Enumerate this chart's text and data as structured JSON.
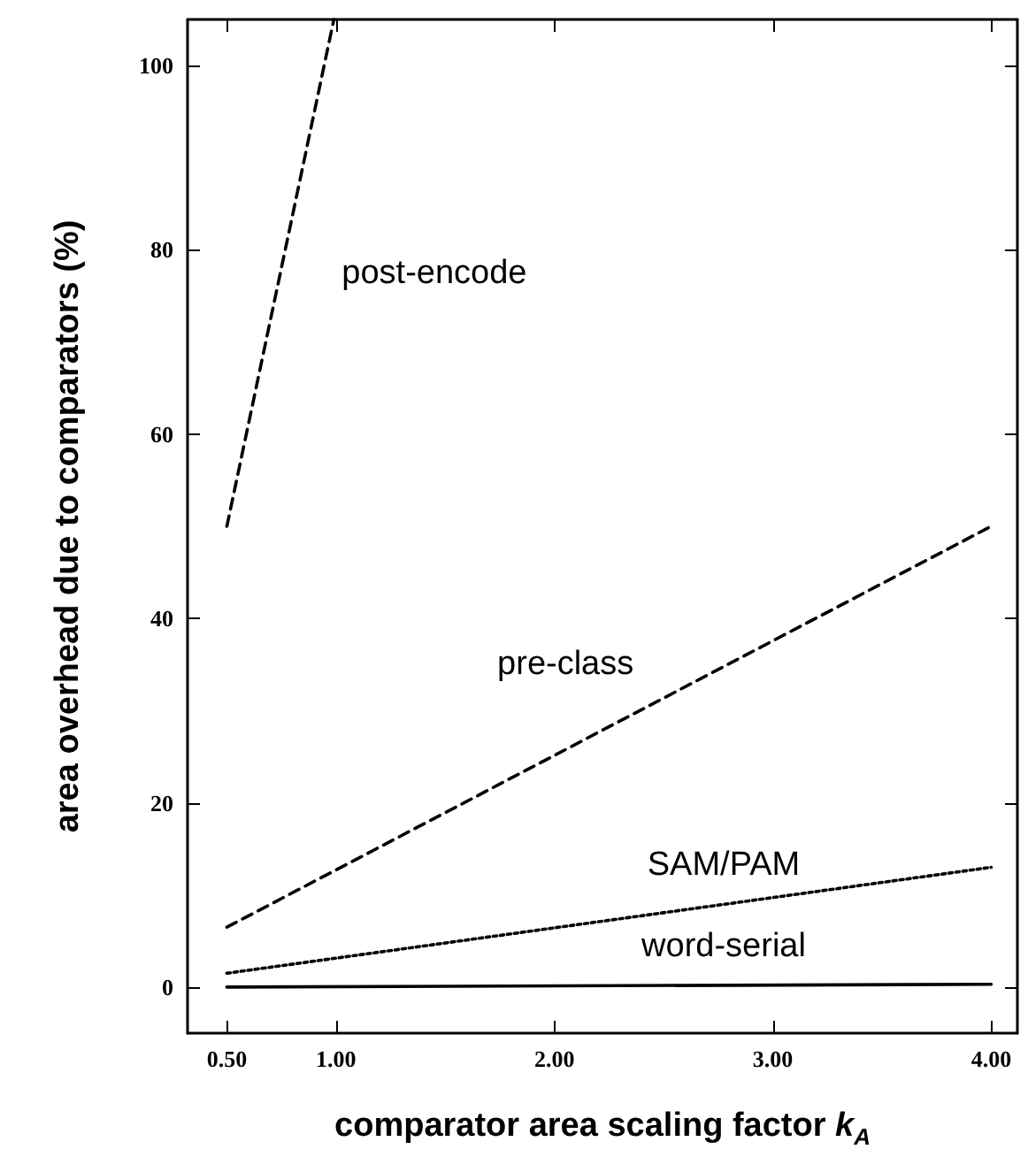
{
  "chart_data": {
    "type": "line",
    "xlabel": "comparator area scaling factor k$_{A}$",
    "ylabel": "area overhead due to comparators (%)",
    "xlim": [
      0.32,
      4.12
    ],
    "ylim": [
      -5,
      105
    ],
    "xticks": [
      {
        "value": 0.5,
        "label": "0.50"
      },
      {
        "value": 1,
        "label": "1.00"
      },
      {
        "value": 2,
        "label": "2.00"
      },
      {
        "value": 3,
        "label": "3.00"
      },
      {
        "value": 4,
        "label": "4.00"
      }
    ],
    "yticks": [
      0,
      20,
      40,
      60,
      80,
      100
    ],
    "grid": false,
    "legend": false,
    "marker": "none",
    "series": [
      {
        "name": "post-encode",
        "color": "#000000",
        "line_style": "dashed",
        "x": [
          0.5,
          0.99
        ],
        "values": [
          50,
          105
        ]
      },
      {
        "name": "pre-class",
        "color": "#000000",
        "line_style": "dashed",
        "x": [
          0.5,
          4.0
        ],
        "values": [
          6.5,
          50
        ]
      },
      {
        "name": "SAM/PAM",
        "color": "#000000",
        "line_style": "dotted",
        "x": [
          0.5,
          4.0
        ],
        "values": [
          1.5,
          13
        ]
      },
      {
        "name": "word-serial",
        "color": "#000000",
        "line_style": "solid",
        "x": [
          0.5,
          4.0
        ],
        "values": [
          0,
          0.3
        ]
      }
    ]
  }
}
